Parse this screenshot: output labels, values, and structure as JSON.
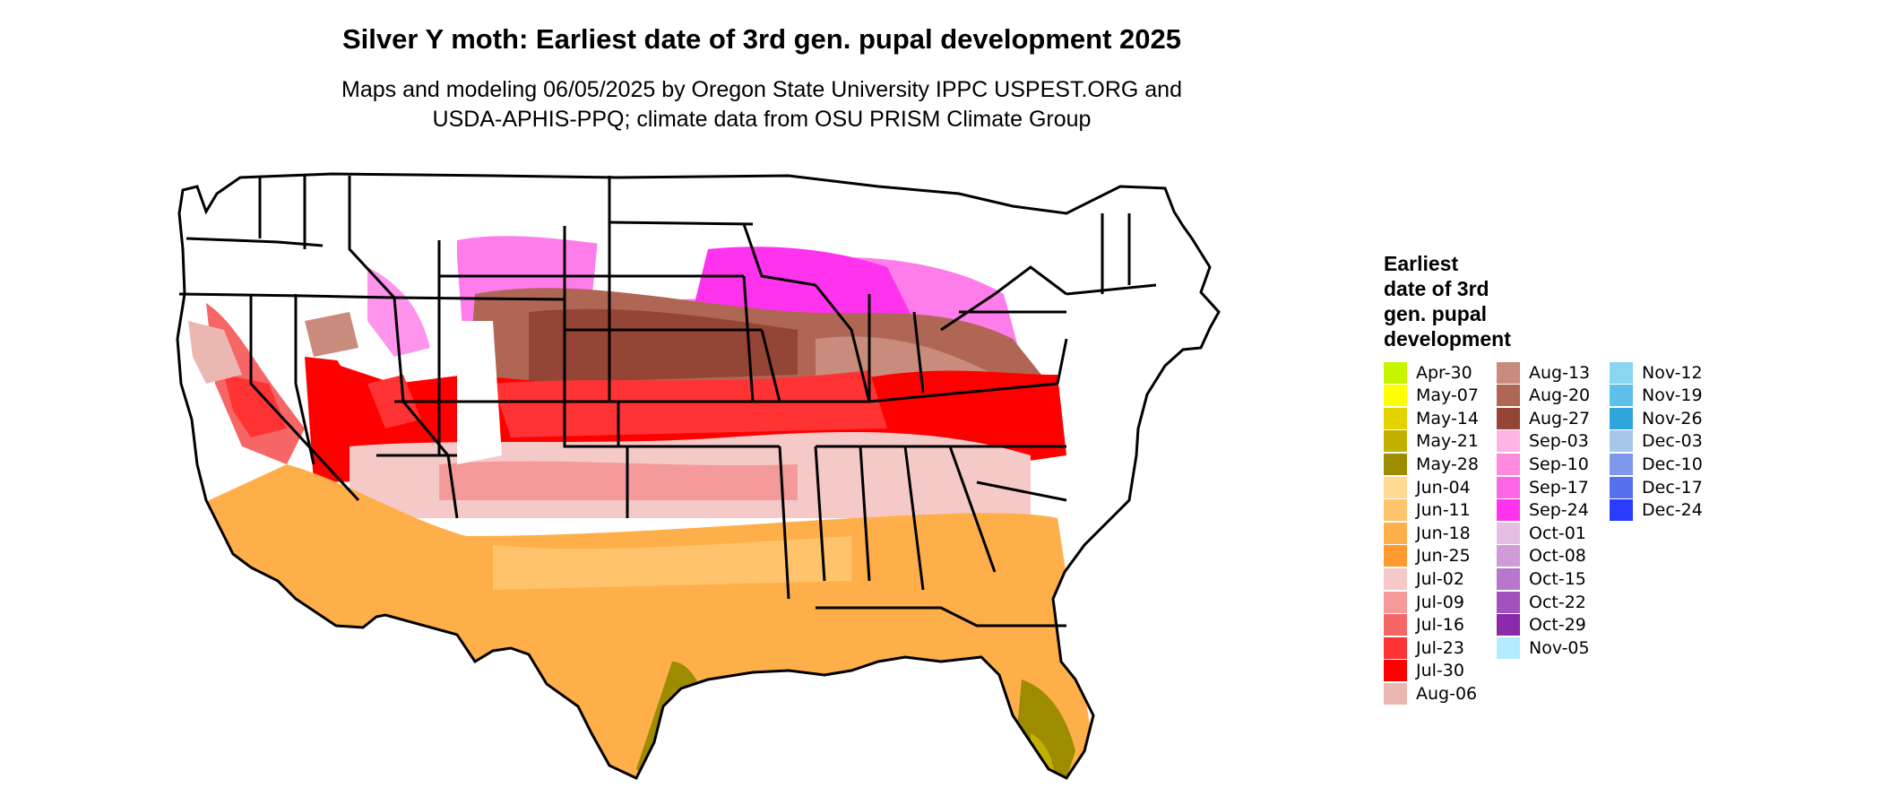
{
  "title": "Silver Y moth: Earliest date of 3rd gen. pupal development 2025",
  "subtitle_line1": "Maps and modeling 06/05/2025 by Oregon State University IPPC USPEST.ORG and",
  "subtitle_line2": "USDA-APHIS-PPQ; climate data from OSU PRISM Climate Group",
  "legend": {
    "title_lines": [
      "Earliest",
      "date of 3rd",
      "gen. pupal",
      "development"
    ],
    "items": [
      {
        "label": "Apr-30",
        "color": "#c6f500"
      },
      {
        "label": "May-07",
        "color": "#ffff00"
      },
      {
        "label": "May-14",
        "color": "#e3d400"
      },
      {
        "label": "May-21",
        "color": "#c2b000"
      },
      {
        "label": "May-28",
        "color": "#9e8c00"
      },
      {
        "label": "Jun-04",
        "color": "#ffd991"
      },
      {
        "label": "Jun-11",
        "color": "#ffc36b"
      },
      {
        "label": "Jun-18",
        "color": "#ffaf4a"
      },
      {
        "label": "Jun-25",
        "color": "#ff9b2e"
      },
      {
        "label": "Jul-02",
        "color": "#f6c9c9"
      },
      {
        "label": "Jul-09",
        "color": "#f59a9a"
      },
      {
        "label": "Jul-16",
        "color": "#f76666"
      },
      {
        "label": "Jul-23",
        "color": "#ff3333"
      },
      {
        "label": "Jul-30",
        "color": "#ff0000"
      },
      {
        "label": "Aug-06",
        "color": "#eab8b0"
      },
      {
        "label": "Aug-13",
        "color": "#c98b7b"
      },
      {
        "label": "Aug-20",
        "color": "#b06655"
      },
      {
        "label": "Aug-27",
        "color": "#954535"
      },
      {
        "label": "Sep-03",
        "color": "#ffb3e6"
      },
      {
        "label": "Sep-10",
        "color": "#ff8ae0"
      },
      {
        "label": "Sep-17",
        "color": "#ff66e6"
      },
      {
        "label": "Sep-24",
        "color": "#ff33ee"
      },
      {
        "label": "Oct-01",
        "color": "#e4bfe4"
      },
      {
        "label": "Oct-08",
        "color": "#cf9bd9"
      },
      {
        "label": "Oct-15",
        "color": "#b877cc"
      },
      {
        "label": "Oct-22",
        "color": "#a152be"
      },
      {
        "label": "Oct-29",
        "color": "#8a2aaa"
      },
      {
        "label": "Nov-05",
        "color": "#b3ecff"
      },
      {
        "label": "Nov-12",
        "color": "#88d6f0"
      },
      {
        "label": "Nov-19",
        "color": "#5cc0ea"
      },
      {
        "label": "Nov-26",
        "color": "#2ea6dd"
      },
      {
        "label": "Dec-03",
        "color": "#a6c8e8"
      },
      {
        "label": "Dec-10",
        "color": "#8098ec"
      },
      {
        "label": "Dec-17",
        "color": "#5670f0"
      },
      {
        "label": "Dec-24",
        "color": "#2a3cff"
      }
    ]
  }
}
